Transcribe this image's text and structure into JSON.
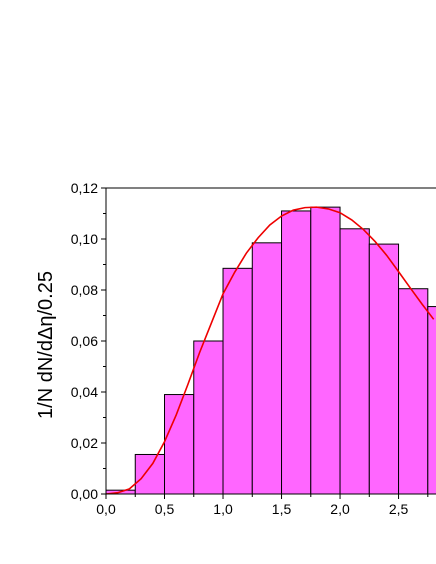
{
  "chart_data": {
    "type": "bar",
    "title": "",
    "xlabel": "",
    "ylabel": "1/N dN/dΔη/0.25",
    "xlim": [
      0.0,
      2.82
    ],
    "ylim": [
      0.0,
      0.12
    ],
    "x_ticks": [
      0.0,
      0.5,
      1.0,
      1.5,
      2.0,
      2.5
    ],
    "x_tick_labels": [
      "0,0",
      "0,5",
      "1,0",
      "1,5",
      "2,0",
      "2,5"
    ],
    "y_ticks": [
      0.0,
      0.02,
      0.04,
      0.06,
      0.08,
      0.1,
      0.12
    ],
    "y_tick_labels": [
      "0,00",
      "0,02",
      "0,04",
      "0,06",
      "0,08",
      "0,10",
      "0,12"
    ],
    "grid": false,
    "bins": {
      "edges": [
        0.0,
        0.25,
        0.5,
        0.75,
        1.0,
        1.25,
        1.5,
        1.75,
        2.0,
        2.25,
        2.5,
        2.75,
        3.0
      ],
      "values": [
        0.0015,
        0.0155,
        0.039,
        0.06,
        0.0885,
        0.0985,
        0.111,
        0.1125,
        0.104,
        0.098,
        0.0805,
        0.0735
      ]
    },
    "series": [
      {
        "type": "line",
        "x": [
          0.0,
          0.1,
          0.2,
          0.3,
          0.4,
          0.5,
          0.6,
          0.7,
          0.8,
          0.9,
          1.0,
          1.1,
          1.2,
          1.3,
          1.4,
          1.5,
          1.6,
          1.7,
          1.8,
          1.9,
          2.0,
          2.1,
          2.2,
          2.3,
          2.4,
          2.5,
          2.6,
          2.7,
          2.8
        ],
        "y": [
          0.0,
          0.0005,
          0.002,
          0.006,
          0.012,
          0.0205,
          0.031,
          0.043,
          0.0555,
          0.067,
          0.0785,
          0.087,
          0.0945,
          0.1005,
          0.1055,
          0.109,
          0.1113,
          0.1123,
          0.1125,
          0.1118,
          0.1103,
          0.1075,
          0.1037,
          0.099,
          0.0935,
          0.0872,
          0.0808,
          0.0745,
          0.0685
        ]
      }
    ],
    "colors": {
      "bar_fill": "#ff66ff",
      "bar_stroke": "#000000",
      "curve": "#ee0000"
    }
  }
}
